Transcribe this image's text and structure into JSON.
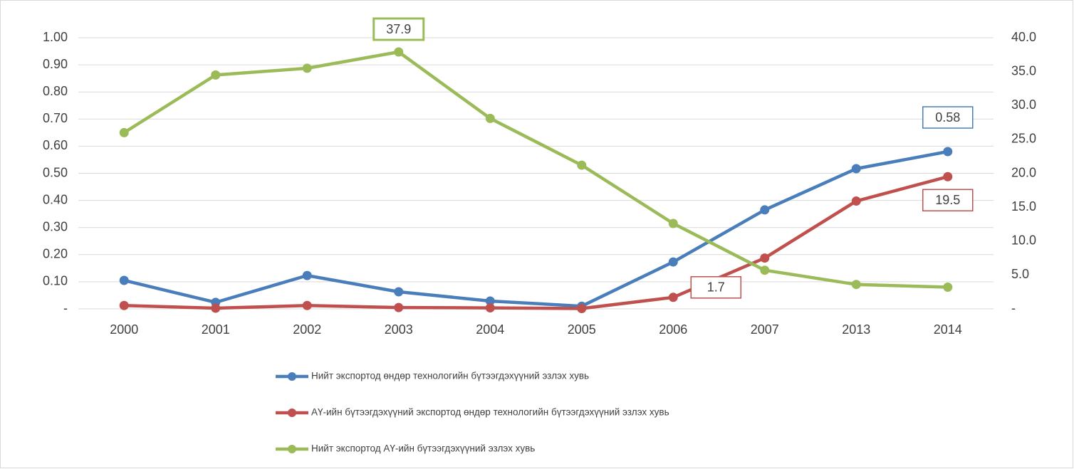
{
  "chart_data": {
    "type": "line",
    "categories": [
      "2000",
      "2001",
      "2002",
      "2003",
      "2004",
      "2005",
      "2006",
      "2007",
      "2013",
      "2014"
    ],
    "ylim": [
      0,
      1.0
    ],
    "yticks": [
      {
        "value": 0,
        "label": "-"
      },
      {
        "value": 0.1,
        "label": "0.10"
      },
      {
        "value": 0.2,
        "label": "0.20"
      },
      {
        "value": 0.3,
        "label": "0.30"
      },
      {
        "value": 0.4,
        "label": "0.40"
      },
      {
        "value": 0.5,
        "label": "0.50"
      },
      {
        "value": 0.6,
        "label": "0.60"
      },
      {
        "value": 0.7,
        "label": "0.70"
      },
      {
        "value": 0.8,
        "label": "0.80"
      },
      {
        "value": 0.9,
        "label": "0.90"
      },
      {
        "value": 1.0,
        "label": "1.00"
      }
    ],
    "y2lim": [
      0,
      40
    ],
    "y2ticks": [
      {
        "value": 0,
        "label": "-"
      },
      {
        "value": 5,
        "label": "5.0"
      },
      {
        "value": 10,
        "label": "10.0"
      },
      {
        "value": 15,
        "label": "15.0"
      },
      {
        "value": 20,
        "label": "20.0"
      },
      {
        "value": 25,
        "label": "25.0"
      },
      {
        "value": 30,
        "label": "30.0"
      },
      {
        "value": 35,
        "label": "35.0"
      },
      {
        "value": 40,
        "label": "40.0"
      }
    ],
    "grid": true,
    "legend": "bottom",
    "series": [
      {
        "name": "Нийт экспортод өндөр технологийн бүтээгдэхүүний эзлэх хувь",
        "color": "#4a7ebb",
        "axis": "y",
        "values": [
          0.105,
          0.024,
          0.123,
          0.063,
          0.029,
          0.01,
          0.173,
          0.365,
          0.517,
          0.58
        ],
        "value_labels": [
          null,
          null,
          null,
          null,
          null,
          null,
          null,
          null,
          null,
          "0.58"
        ]
      },
      {
        "name": "АҮ-ийн бүтээгдэхүүний экспортод өндөр технологийн бүтээгдэхүүний эзлэх хувь",
        "color": "#c0504d",
        "axis": "y2",
        "values": [
          0.5,
          0.1,
          0.5,
          0.2,
          0.15,
          0.05,
          1.7,
          7.5,
          15.9,
          19.5
        ],
        "value_labels": [
          null,
          null,
          null,
          null,
          null,
          null,
          "1.7",
          null,
          null,
          "19.5"
        ]
      },
      {
        "name": "Нийт экспортод АҮ-ийн бүтээгдэхүүний эзлэх хувь",
        "color": "#9bbb59",
        "axis": "y2",
        "values": [
          26.0,
          34.5,
          35.5,
          37.9,
          28.1,
          21.2,
          12.6,
          5.7,
          3.6,
          3.2
        ],
        "value_labels": [
          null,
          null,
          null,
          "37.9",
          null,
          null,
          null,
          null,
          null,
          null
        ]
      }
    ]
  }
}
